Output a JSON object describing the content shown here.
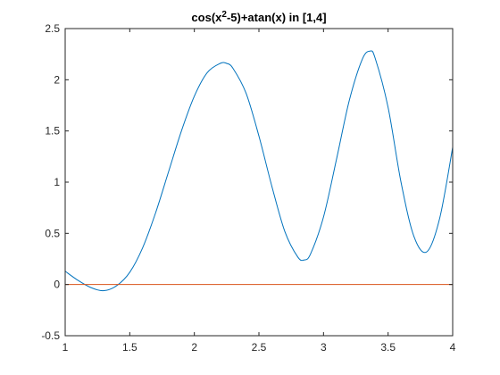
{
  "chart_data": {
    "type": "line",
    "title": {
      "prefix": "cos(x",
      "superscript": "2",
      "suffix": "-5)+atan(x)  in  [1,4]"
    },
    "xlabel": "",
    "ylabel": "",
    "xlim": [
      1,
      4
    ],
    "ylim": [
      -0.5,
      2.5
    ],
    "x_ticks": [
      1,
      1.5,
      2,
      2.5,
      3,
      3.5,
      4
    ],
    "x_tick_labels": [
      "1",
      "1.5",
      "2",
      "2.5",
      "3",
      "3.5",
      "4"
    ],
    "y_ticks": [
      -0.5,
      0,
      0.5,
      1,
      1.5,
      2,
      2.5
    ],
    "y_tick_labels": [
      "-0.5",
      "0",
      "0.5",
      "1",
      "1.5",
      "2",
      "2.5"
    ],
    "grid": false,
    "series": [
      {
        "color": "#0072BD",
        "x": [
          1.0,
          1.1,
          1.2,
          1.3,
          1.4,
          1.5,
          1.6,
          1.7,
          1.8,
          1.9,
          2.0,
          2.1,
          2.2,
          2.25,
          2.3,
          2.4,
          2.5,
          2.6,
          2.7,
          2.8,
          2.85,
          2.9,
          3.0,
          3.1,
          3.2,
          3.3,
          3.36,
          3.4,
          3.5,
          3.6,
          3.7,
          3.8,
          3.9,
          4.0
        ],
        "y": [
          0.13,
          0.04,
          -0.03,
          -0.06,
          -0.01,
          0.12,
          0.36,
          0.7,
          1.1,
          1.5,
          1.84,
          2.07,
          2.16,
          2.16,
          2.11,
          1.87,
          1.45,
          0.96,
          0.52,
          0.27,
          0.24,
          0.3,
          0.66,
          1.22,
          1.8,
          2.2,
          2.28,
          2.21,
          1.73,
          1.0,
          0.47,
          0.32,
          0.65,
          1.34
        ]
      },
      {
        "color": "#D95319",
        "x": [
          1,
          4
        ],
        "y": [
          0,
          0
        ]
      }
    ]
  }
}
